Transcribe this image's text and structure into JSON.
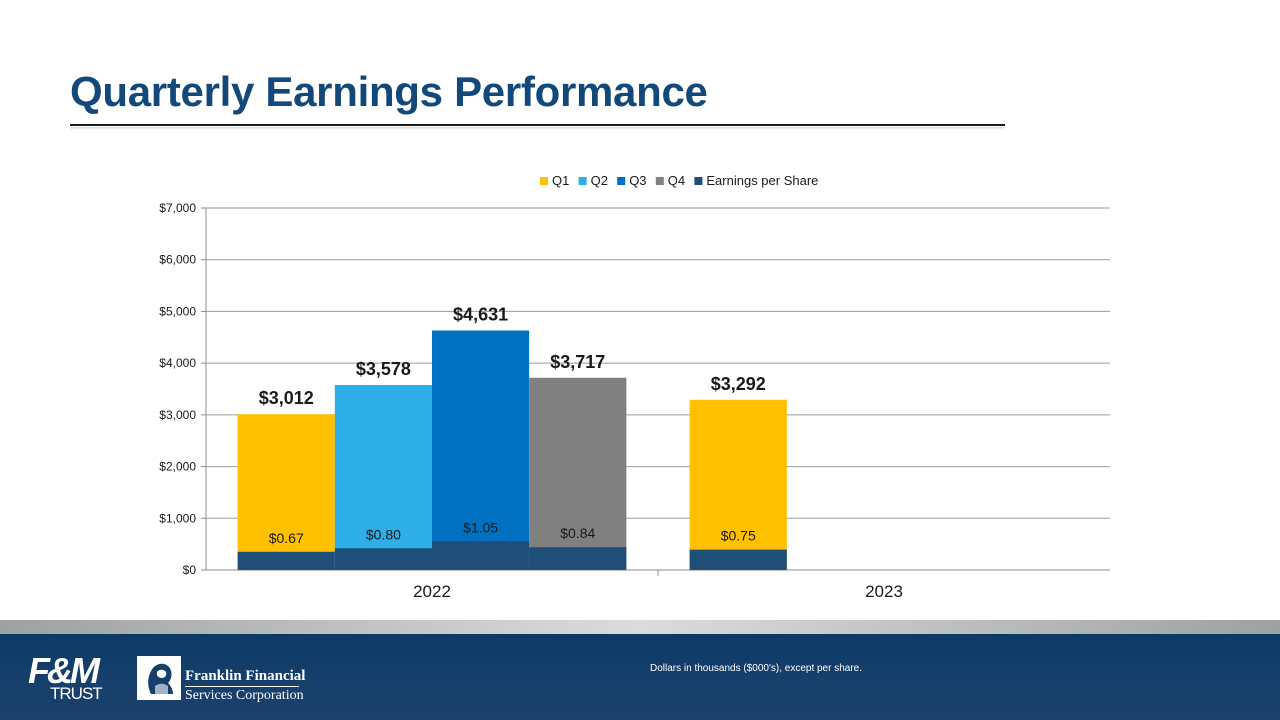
{
  "title": "Quarterly Earnings Performance",
  "chart_data": {
    "type": "bar",
    "groups": [
      "2022",
      "2023"
    ],
    "series": [
      {
        "name": "Q1",
        "color": "#ffc000",
        "values": [
          3012,
          3292
        ],
        "labels": [
          "$3,012",
          "$3,292"
        ]
      },
      {
        "name": "Q2",
        "color": "#2eaee6",
        "values": [
          3578,
          null
        ],
        "labels": [
          "$3,578",
          null
        ]
      },
      {
        "name": "Q3",
        "color": "#0070c0",
        "values": [
          4631,
          null
        ],
        "labels": [
          "$4,631",
          null
        ]
      },
      {
        "name": "Q4",
        "color": "#808080",
        "values": [
          3717,
          null
        ],
        "labels": [
          "$3,717",
          null
        ]
      }
    ],
    "eps": {
      "name": "Earnings per Share",
      "color": "#1f4e79",
      "values": [
        [
          0.67,
          0.8,
          1.05,
          0.84
        ],
        [
          0.75
        ]
      ],
      "labels": [
        [
          "$0.67",
          "$0.80",
          "$1.05",
          "$0.84"
        ],
        [
          "$0.75"
        ]
      ]
    },
    "ylim": [
      0,
      7000
    ],
    "yticks": [
      0,
      1000,
      2000,
      3000,
      4000,
      5000,
      6000,
      7000
    ],
    "ytick_labels": [
      "$0",
      "$1,000",
      "$2,000",
      "$3,000",
      "$4,000",
      "$5,000",
      "$6,000",
      "$7,000"
    ],
    "gridlines": true,
    "legend_position": "top"
  },
  "footer": {
    "note": "Dollars in thousands ($000's), except per share.",
    "logo_fm_big": "F&M",
    "logo_fm_small": "TRUST",
    "logo_ff_line1": "Franklin Financial",
    "logo_ff_line2": "Services Corporation"
  }
}
